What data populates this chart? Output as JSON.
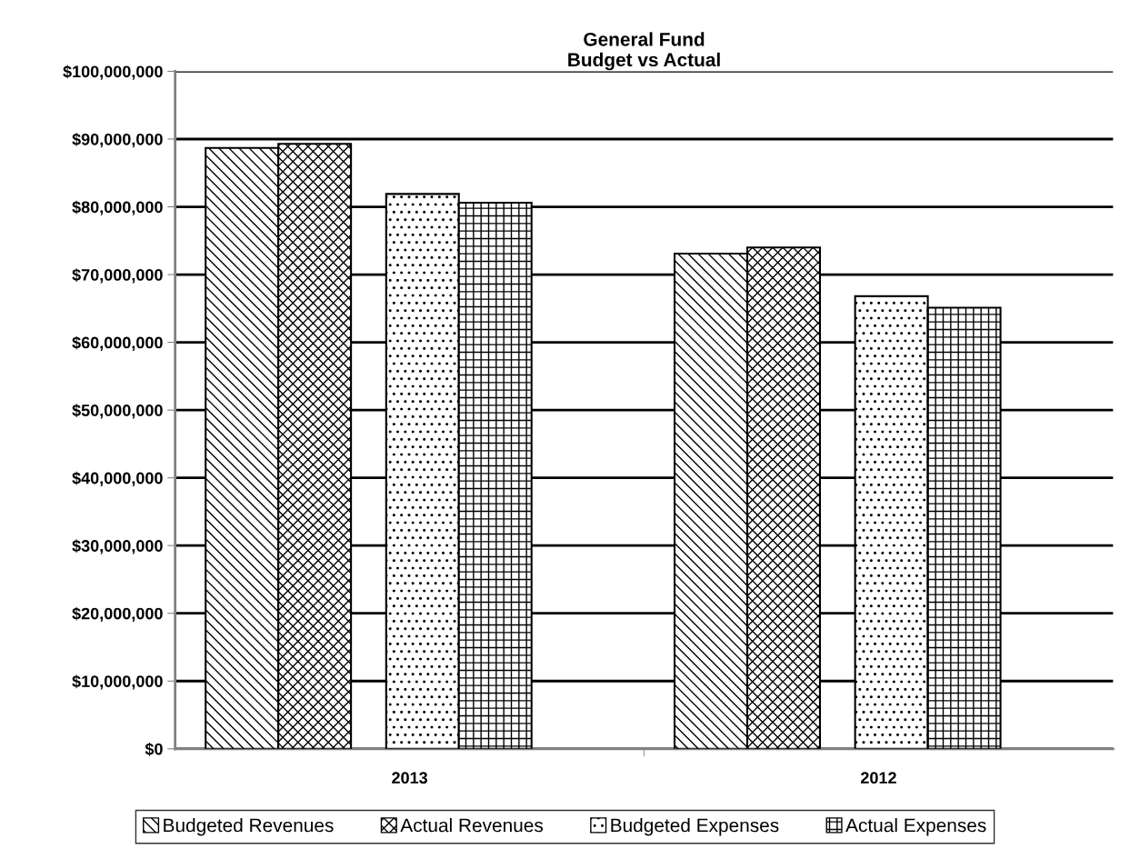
{
  "chart_data": {
    "type": "bar",
    "title": "General Fund\nBudget vs Actual",
    "categories": [
      "2013",
      "2012"
    ],
    "series": [
      {
        "name": "Budgeted Revenues",
        "color": "#000000",
        "values": [
          88700000,
          73100000
        ]
      },
      {
        "name": "Actual Revenues",
        "color": "#000000",
        "values": [
          89300000,
          74000000
        ]
      },
      {
        "name": "Budgeted Expenses",
        "color": "#000000",
        "values": [
          81900000,
          66800000
        ]
      },
      {
        "name": "Actual Expenses",
        "color": "#000000",
        "values": [
          80600000,
          65100000
        ]
      }
    ],
    "ylim": [
      0,
      100000000
    ],
    "yticks": [
      {
        "value": 0,
        "label": "$0"
      },
      {
        "value": 10000000,
        "label": "$10,000,000"
      },
      {
        "value": 20000000,
        "label": "$20,000,000"
      },
      {
        "value": 30000000,
        "label": "$30,000,000"
      },
      {
        "value": 40000000,
        "label": "$40,000,000"
      },
      {
        "value": 50000000,
        "label": "$50,000,000"
      },
      {
        "value": 60000000,
        "label": "$60,000,000"
      },
      {
        "value": 70000000,
        "label": "$70,000,000"
      },
      {
        "value": 80000000,
        "label": "$80,000,000"
      },
      {
        "value": 90000000,
        "label": "$90,000,000"
      },
      {
        "value": 100000000,
        "label": "$100,000,000"
      }
    ],
    "grid": "y",
    "legend": "bottom"
  }
}
